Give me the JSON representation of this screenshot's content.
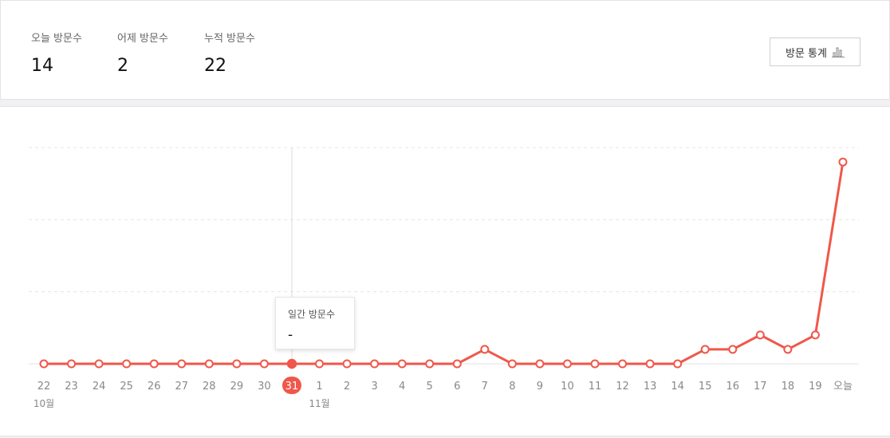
{
  "summary": {
    "today": {
      "label": "오늘 방문수",
      "value": "14"
    },
    "yesterday": {
      "label": "어제 방문수",
      "value": "2"
    },
    "total": {
      "label": "누적 방문수",
      "value": "22"
    },
    "stats_button_label": "방문 통계",
    "stats_button_icon": "bar-chart-icon"
  },
  "tooltip": {
    "label": "일간 방문수",
    "value": "-"
  },
  "colors": {
    "line": "#f0574a",
    "grid": "#e4e4e8",
    "axis": "#e0e0e4",
    "tick_text": "#888888"
  },
  "chart_data": {
    "type": "line",
    "categories": [
      "22",
      "23",
      "24",
      "25",
      "26",
      "27",
      "28",
      "29",
      "30",
      "31",
      "1",
      "2",
      "3",
      "4",
      "5",
      "6",
      "7",
      "8",
      "9",
      "10",
      "11",
      "12",
      "13",
      "14",
      "15",
      "16",
      "17",
      "18",
      "19",
      "오늘"
    ],
    "month_labels": [
      {
        "index": 0,
        "label": "10월"
      },
      {
        "index": 10,
        "label": "11월"
      }
    ],
    "series": [
      {
        "values": [
          0,
          0,
          0,
          0,
          0,
          0,
          0,
          0,
          0,
          0,
          0,
          0,
          0,
          0,
          0,
          0,
          1,
          0,
          0,
          0,
          0,
          0,
          0,
          0,
          1,
          1,
          2,
          1,
          2,
          14
        ]
      }
    ],
    "ylim": [
      0,
      15
    ],
    "grid": true,
    "highlighted_index": 9
  }
}
